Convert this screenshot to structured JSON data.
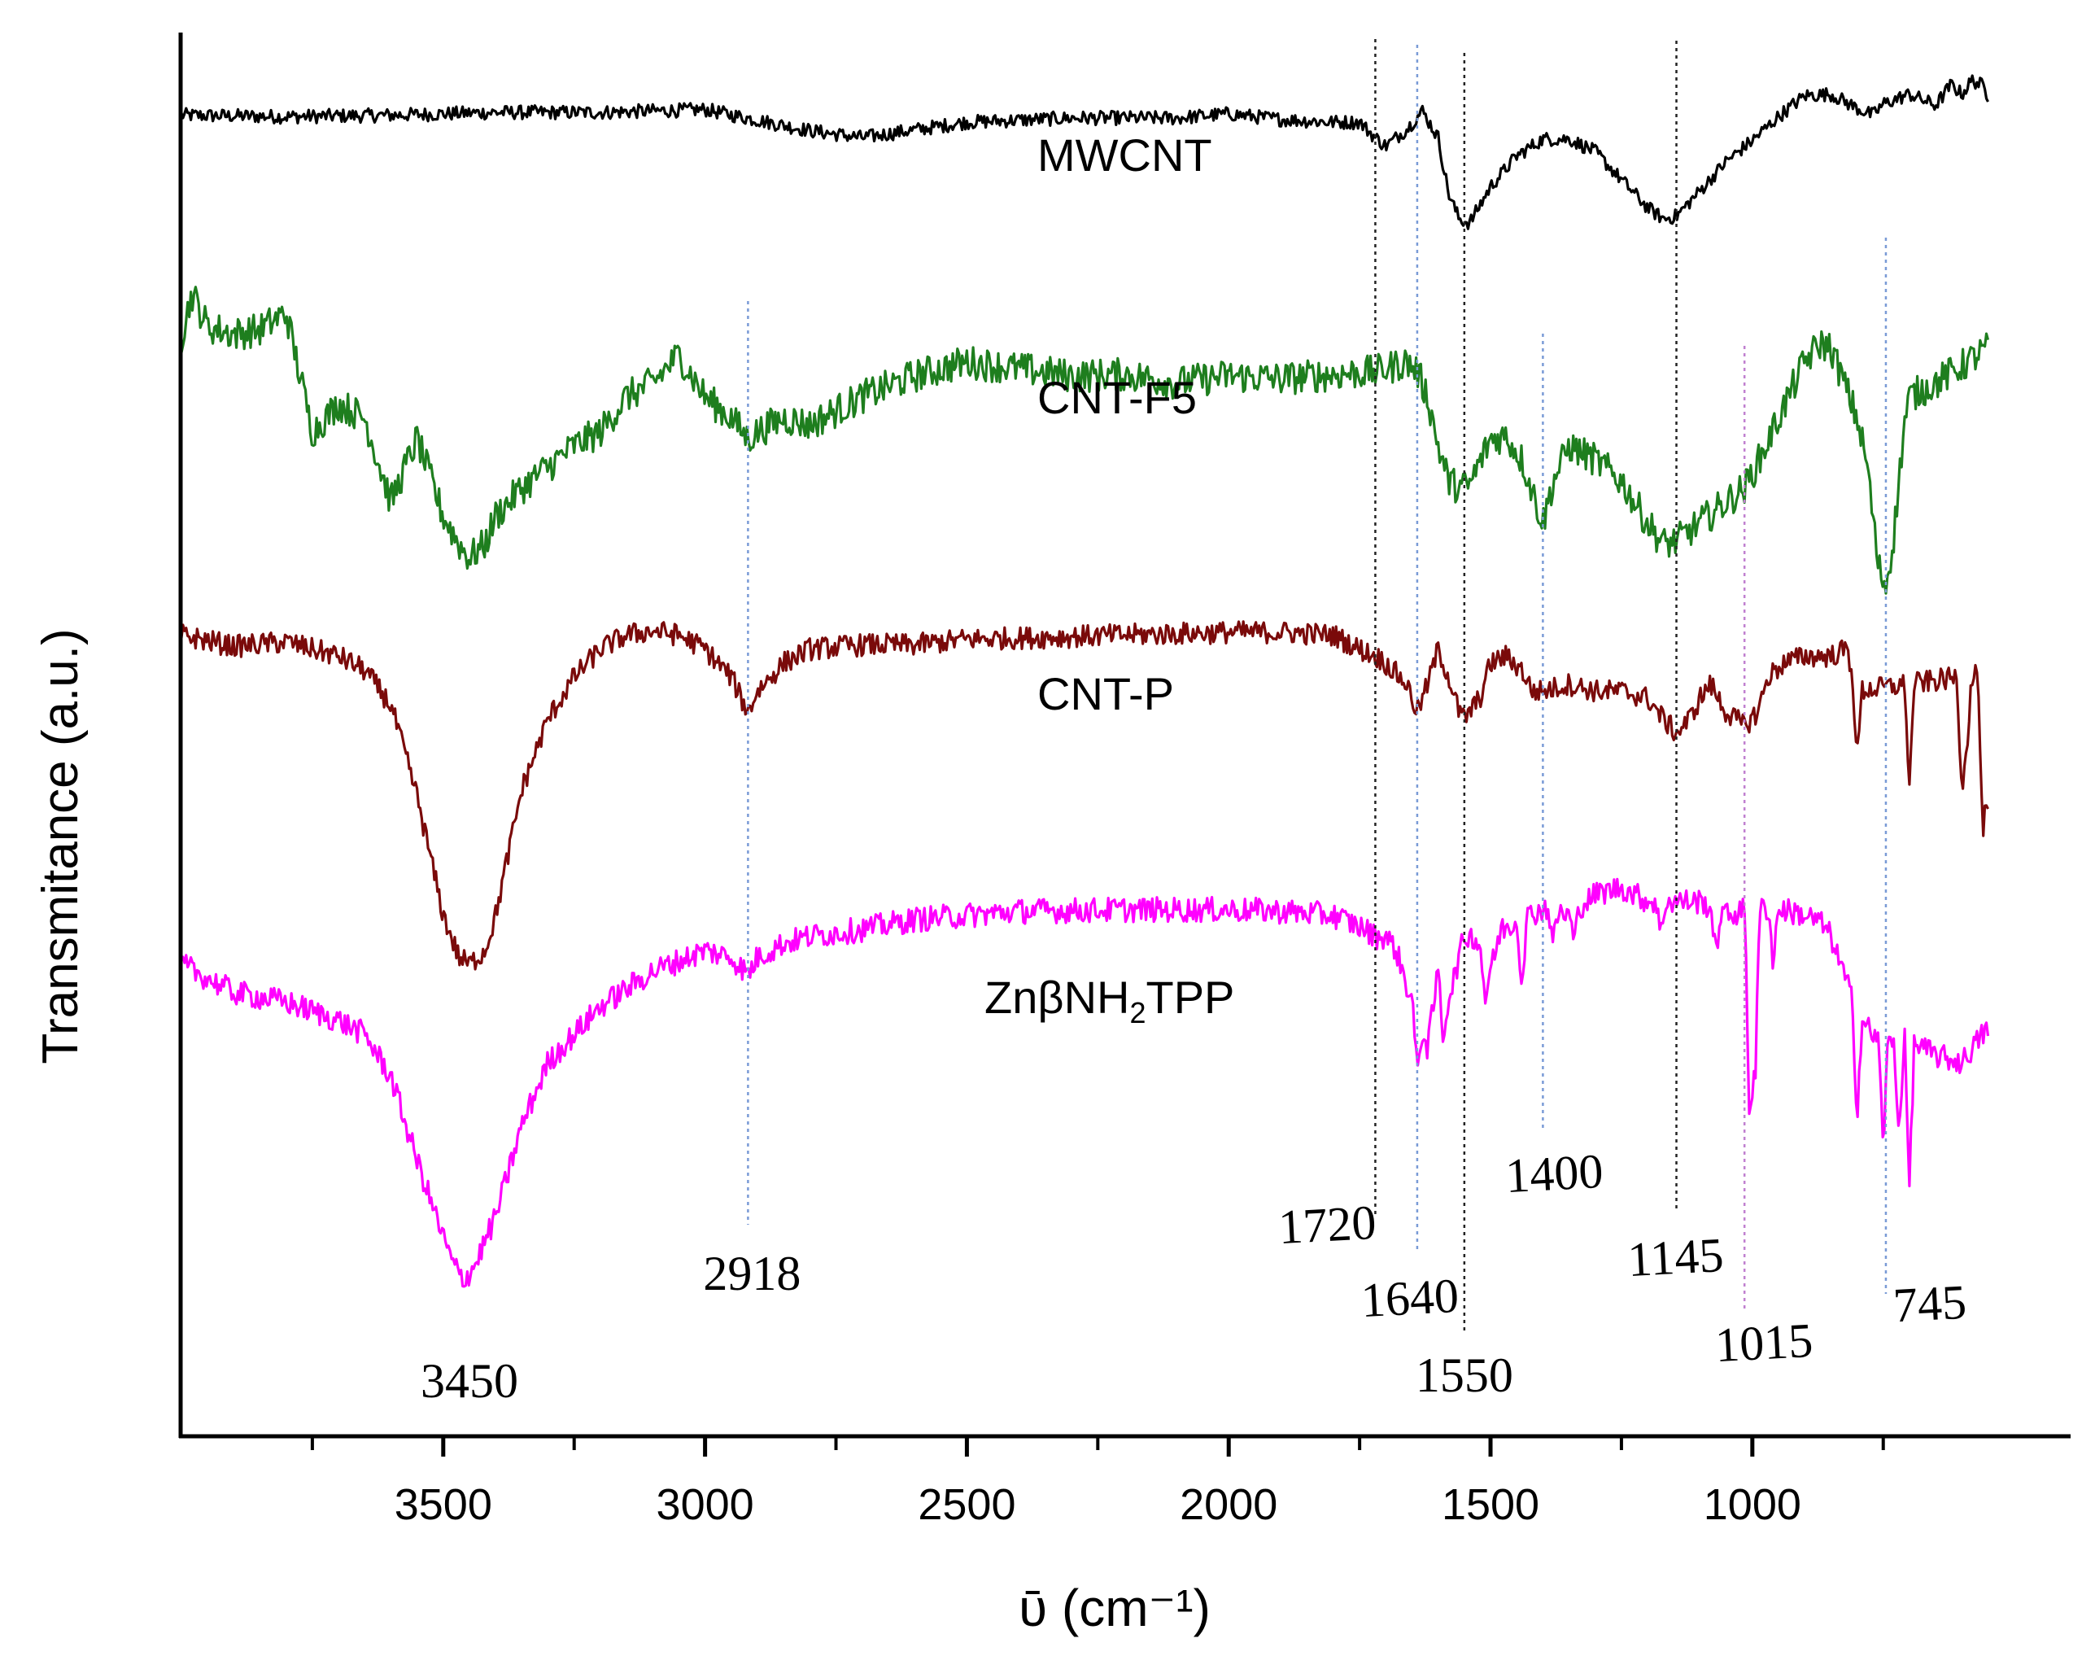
{
  "chart_data": {
    "type": "line",
    "title": "",
    "xlabel": "ῡ (cm⁻¹)",
    "ylabel": "Transmitance (a.u.)",
    "xlim": [
      4000,
      400
    ],
    "x_ticks": [
      3500,
      3000,
      2500,
      2000,
      1500,
      1000
    ],
    "x_tick_labels": [
      "3500",
      "3000",
      "2500",
      "2000",
      "1500",
      "1000"
    ],
    "ylim": [
      0,
      100
    ],
    "y_ticks_shown": false,
    "grid": false,
    "series": [
      {
        "name": "MWCNT",
        "label_parts": {
          "main": "MWCNT",
          "sub": "",
          "tail": ""
        },
        "color": "#000000",
        "noise": 0.5,
        "points": [
          [
            4000,
            94.1
          ],
          [
            3800,
            94.0
          ],
          [
            3600,
            94.1
          ],
          [
            3400,
            94.3
          ],
          [
            3200,
            94.3
          ],
          [
            3000,
            94.5
          ],
          [
            2800,
            93.0
          ],
          [
            2700,
            92.5
          ],
          [
            2500,
            93.6
          ],
          [
            2300,
            93.9
          ],
          [
            2100,
            93.9
          ],
          [
            2000,
            94.2
          ],
          [
            1900,
            93.8
          ],
          [
            1800,
            93.6
          ],
          [
            1750,
            93.6
          ],
          [
            1720,
            92.5
          ],
          [
            1700,
            91.9
          ],
          [
            1660,
            93.1
          ],
          [
            1630,
            94.4
          ],
          [
            1600,
            92.5
          ],
          [
            1580,
            88.5
          ],
          [
            1560,
            86.7
          ],
          [
            1540,
            86.4
          ],
          [
            1500,
            89.0
          ],
          [
            1450,
            91.2
          ],
          [
            1400,
            92.4
          ],
          [
            1350,
            92.4
          ],
          [
            1300,
            91.5
          ],
          [
            1250,
            89.5
          ],
          [
            1200,
            87.5
          ],
          [
            1170,
            86.7
          ],
          [
            1145,
            86.9
          ],
          [
            1100,
            88.7
          ],
          [
            1050,
            90.8
          ],
          [
            1000,
            92.3
          ],
          [
            950,
            94.0
          ],
          [
            900,
            95.5
          ],
          [
            850,
            95.6
          ],
          [
            800,
            94.6
          ],
          [
            770,
            94.1
          ],
          [
            750,
            94.9
          ],
          [
            700,
            95.6
          ],
          [
            650,
            94.8
          ],
          [
            620,
            96.3
          ],
          [
            600,
            95.6
          ],
          [
            580,
            96.6
          ],
          [
            560,
            96.2
          ],
          [
            550,
            95.5
          ]
        ]
      },
      {
        "name": "CNT-F5",
        "label_parts": {
          "main": "CNT-F5",
          "sub": "",
          "tail": ""
        },
        "color": "#1e7e1e",
        "noise": 1.2,
        "points": [
          [
            4000,
            78.2
          ],
          [
            3980,
            81.4
          ],
          [
            3950,
            79.0
          ],
          [
            3900,
            78.5
          ],
          [
            3850,
            78.8
          ],
          [
            3800,
            80.0
          ],
          [
            3750,
            71.5
          ],
          [
            3700,
            73.5
          ],
          [
            3650,
            72.5
          ],
          [
            3600,
            66.5
          ],
          [
            3550,
            71.0
          ],
          [
            3500,
            65.5
          ],
          [
            3470,
            63.5
          ],
          [
            3450,
            62.5
          ],
          [
            3420,
            63.5
          ],
          [
            3400,
            65.5
          ],
          [
            3350,
            67.5
          ],
          [
            3300,
            69.0
          ],
          [
            3250,
            70.5
          ],
          [
            3200,
            71.5
          ],
          [
            3150,
            74.0
          ],
          [
            3100,
            75.0
          ],
          [
            3050,
            77.0
          ],
          [
            3000,
            74.0
          ],
          [
            2950,
            72.5
          ],
          [
            2918,
            71.0
          ],
          [
            2900,
            71.5
          ],
          [
            2850,
            72.5
          ],
          [
            2800,
            72.0
          ],
          [
            2750,
            73.0
          ],
          [
            2700,
            74.0
          ],
          [
            2600,
            75.5
          ],
          [
            2500,
            76.5
          ],
          [
            2400,
            76.0
          ],
          [
            2300,
            75.5
          ],
          [
            2200,
            75.6
          ],
          [
            2100,
            75.0
          ],
          [
            2000,
            75.5
          ],
          [
            1900,
            75.3
          ],
          [
            1800,
            75.6
          ],
          [
            1720,
            75.8
          ],
          [
            1700,
            76.0
          ],
          [
            1660,
            76.5
          ],
          [
            1640,
            75.8
          ],
          [
            1620,
            74.0
          ],
          [
            1600,
            70.5
          ],
          [
            1580,
            68.0
          ],
          [
            1560,
            67.5
          ],
          [
            1540,
            67.7
          ],
          [
            1500,
            71.0
          ],
          [
            1470,
            71.2
          ],
          [
            1440,
            69.5
          ],
          [
            1400,
            65.0
          ],
          [
            1380,
            68.0
          ],
          [
            1350,
            70.5
          ],
          [
            1300,
            69.5
          ],
          [
            1250,
            68.0
          ],
          [
            1200,
            65.0
          ],
          [
            1170,
            63.5
          ],
          [
            1145,
            63.7
          ],
          [
            1100,
            65.0
          ],
          [
            1050,
            66.5
          ],
          [
            1015,
            67.5
          ],
          [
            980,
            70.0
          ],
          [
            950,
            72.5
          ],
          [
            900,
            76.5
          ],
          [
            870,
            77.8
          ],
          [
            850,
            77.5
          ],
          [
            830,
            75.5
          ],
          [
            800,
            72.5
          ],
          [
            780,
            69.0
          ],
          [
            760,
            62.0
          ],
          [
            745,
            60.5
          ],
          [
            730,
            64.0
          ],
          [
            710,
            72.0
          ],
          [
            700,
            74.0
          ],
          [
            650,
            75.0
          ],
          [
            600,
            76.2
          ],
          [
            550,
            77.5
          ]
        ]
      },
      {
        "name": "CNT-P",
        "label_parts": {
          "main": "CNT-P",
          "sub": "",
          "tail": ""
        },
        "color": "#7a0a0a",
        "noise": 0.8,
        "points": [
          [
            4000,
            57.0
          ],
          [
            3900,
            56.2
          ],
          [
            3800,
            56.5
          ],
          [
            3700,
            55.5
          ],
          [
            3650,
            54.5
          ],
          [
            3600,
            52.0
          ],
          [
            3550,
            45.5
          ],
          [
            3500,
            37.0
          ],
          [
            3470,
            34.0
          ],
          [
            3450,
            33.5
          ],
          [
            3420,
            34.5
          ],
          [
            3400,
            37.0
          ],
          [
            3350,
            46.0
          ],
          [
            3300,
            51.0
          ],
          [
            3250,
            54.0
          ],
          [
            3200,
            56.0
          ],
          [
            3150,
            57.0
          ],
          [
            3100,
            57.3
          ],
          [
            3050,
            57.0
          ],
          [
            3000,
            56.0
          ],
          [
            2950,
            54.0
          ],
          [
            2918,
            51.5
          ],
          [
            2900,
            53.0
          ],
          [
            2850,
            55.0
          ],
          [
            2800,
            56.0
          ],
          [
            2700,
            56.3
          ],
          [
            2600,
            56.3
          ],
          [
            2500,
            56.7
          ],
          [
            2400,
            56.8
          ],
          [
            2200,
            57.0
          ],
          [
            2000,
            57.2
          ],
          [
            1900,
            57.2
          ],
          [
            1800,
            57.0
          ],
          [
            1750,
            56.0
          ],
          [
            1720,
            55.5
          ],
          [
            1700,
            55.0
          ],
          [
            1660,
            53.5
          ],
          [
            1640,
            51.5
          ],
          [
            1620,
            53.5
          ],
          [
            1600,
            56.0
          ],
          [
            1580,
            54.0
          ],
          [
            1560,
            51.5
          ],
          [
            1550,
            51.0
          ],
          [
            1520,
            52.5
          ],
          [
            1500,
            55.0
          ],
          [
            1470,
            55.5
          ],
          [
            1440,
            54.5
          ],
          [
            1420,
            53.0
          ],
          [
            1400,
            53.0
          ],
          [
            1350,
            53.5
          ],
          [
            1300,
            53.0
          ],
          [
            1250,
            53.0
          ],
          [
            1200,
            52.5
          ],
          [
            1170,
            51.0
          ],
          [
            1145,
            50.0
          ],
          [
            1120,
            51.0
          ],
          [
            1100,
            52.5
          ],
          [
            1080,
            53.5
          ],
          [
            1050,
            51.5
          ],
          [
            1015,
            50.5
          ],
          [
            990,
            51.5
          ],
          [
            970,
            54.0
          ],
          [
            940,
            55.0
          ],
          [
            900,
            55.5
          ],
          [
            850,
            55.5
          ],
          [
            820,
            56.0
          ],
          [
            800,
            53.0
          ],
          [
            700,
            53.5
          ],
          [
            600,
            54.0
          ],
          [
            550,
            54.5
          ]
        ],
        "spikes": [
          [
            800,
            48.0
          ],
          [
            700,
            46.0
          ],
          [
            600,
            45.5
          ],
          [
            590,
            49.0
          ],
          [
            560,
            42.0
          ],
          [
            550,
            44.0
          ]
        ]
      },
      {
        "name": "ZnβNH₂TPP",
        "label_parts": {
          "main": "ZnβNH",
          "sub": "2",
          "tail": "TPP"
        },
        "color": "#ff00ff",
        "noise": 0.9,
        "points": [
          [
            4000,
            33.5
          ],
          [
            3900,
            31.5
          ],
          [
            3800,
            30.8
          ],
          [
            3700,
            29.5
          ],
          [
            3650,
            28.5
          ],
          [
            3600,
            25.5
          ],
          [
            3550,
            19.5
          ],
          [
            3500,
            14.0
          ],
          [
            3480,
            12.0
          ],
          [
            3460,
            11.0
          ],
          [
            3440,
            12.0
          ],
          [
            3400,
            15.5
          ],
          [
            3350,
            22.0
          ],
          [
            3300,
            26.5
          ],
          [
            3200,
            30.5
          ],
          [
            3100,
            33.0
          ],
          [
            3000,
            34.5
          ],
          [
            2950,
            34.0
          ],
          [
            2918,
            32.8
          ],
          [
            2900,
            34.0
          ],
          [
            2850,
            35.0
          ],
          [
            2800,
            35.5
          ],
          [
            2700,
            36.0
          ],
          [
            2600,
            36.7
          ],
          [
            2500,
            37.0
          ],
          [
            2400,
            37.3
          ],
          [
            2200,
            37.4
          ],
          [
            2000,
            37.4
          ],
          [
            1900,
            37.3
          ],
          [
            1800,
            37.0
          ],
          [
            1750,
            36.2
          ],
          [
            1720,
            35.5
          ],
          [
            1700,
            35.5
          ],
          [
            1680,
            34.5
          ],
          [
            1660,
            32.0
          ],
          [
            1640,
            30.0
          ],
          [
            1620,
            27.5
          ],
          [
            1600,
            33.0
          ],
          [
            1580,
            31.0
          ],
          [
            1560,
            34.0
          ],
          [
            1550,
            35.5
          ],
          [
            1530,
            35.5
          ],
          [
            1500,
            33.0
          ],
          [
            1480,
            36.0
          ],
          [
            1450,
            36.5
          ],
          [
            1400,
            37.5
          ],
          [
            1350,
            37.0
          ],
          [
            1300,
            38.5
          ],
          [
            1250,
            39.0
          ],
          [
            1200,
            38.0
          ],
          [
            1145,
            38.0
          ],
          [
            1100,
            38.0
          ],
          [
            1050,
            37.0
          ],
          [
            1000,
            37.5
          ],
          [
            950,
            37.5
          ],
          [
            900,
            37.0
          ],
          [
            870,
            36.5
          ],
          [
            850,
            35.5
          ],
          [
            800,
            30.0
          ],
          [
            780,
            29.0
          ],
          [
            760,
            28.0
          ],
          [
            700,
            28.0
          ],
          [
            650,
            27.0
          ],
          [
            600,
            26.5
          ],
          [
            550,
            29.0
          ]
        ],
        "spikes": [
          [
            1640,
            25.5
          ],
          [
            1590,
            28.0
          ],
          [
            1510,
            31.0
          ],
          [
            1440,
            32.0
          ],
          [
            1380,
            35.0
          ],
          [
            1340,
            35.0
          ],
          [
            1175,
            35.5
          ],
          [
            1070,
            34.0
          ],
          [
            1005,
            21.5
          ],
          [
            995,
            24.5
          ],
          [
            960,
            33.5
          ],
          [
            800,
            22.5
          ],
          [
            750,
            20.5
          ],
          [
            720,
            21.0
          ],
          [
            700,
            17.5
          ]
        ]
      }
    ],
    "marker_lines": [
      {
        "wavenumber": 3450,
        "label": "3450",
        "color": "",
        "style": "none"
      },
      {
        "wavenumber": 2918,
        "label": "2918",
        "color": "#7a9bd6",
        "style": "dotted"
      },
      {
        "wavenumber": 1720,
        "label": "1720",
        "color": "#222222",
        "style": "dotted"
      },
      {
        "wavenumber": 1640,
        "label": "1640",
        "color": "#7a9bd6",
        "style": "dotted"
      },
      {
        "wavenumber": 1550,
        "label": "1550",
        "color": "#222222",
        "style": "dotted"
      },
      {
        "wavenumber": 1400,
        "label": "1400",
        "color": "#7a9bd6",
        "style": "dotted"
      },
      {
        "wavenumber": 1145,
        "label": "1145",
        "color": "#222222",
        "style": "dotted"
      },
      {
        "wavenumber": 1015,
        "label": "1015",
        "color": "#c080d0",
        "style": "dotted"
      },
      {
        "wavenumber": 745,
        "label": "745",
        "color": "#7a9bd6",
        "style": "dotted"
      }
    ]
  }
}
